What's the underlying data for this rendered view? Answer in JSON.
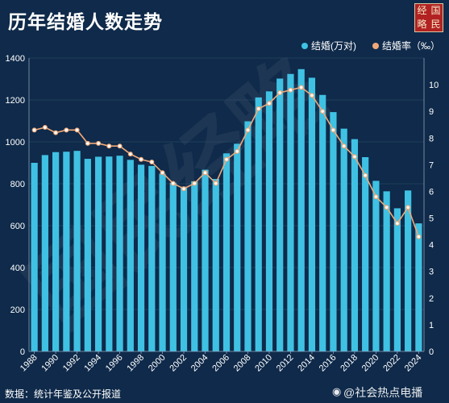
{
  "header": {
    "title": "历年结婚人数走势",
    "logo_chars": [
      "经",
      "国",
      "略",
      "民"
    ]
  },
  "legend": {
    "bar_label": "结婚(万对)",
    "line_label": "结婚率（‰）"
  },
  "footer": {
    "source": "数据：统计年鉴及公开报道",
    "watermark": "@社会热点电播"
  },
  "background_watermark": "国民经略",
  "colors": {
    "background": "#0f2a4a",
    "bar": "#3fc1e3",
    "line": "#f0a878",
    "point_fill": "#ffffff",
    "axis_text": "#ffffff",
    "grid": "#34506f"
  },
  "chart_data": {
    "type": "bar",
    "title": "历年结婚人数走势",
    "categories": [
      1988,
      1989,
      1990,
      1991,
      1992,
      1993,
      1994,
      1995,
      1996,
      1997,
      1998,
      1999,
      2000,
      2001,
      2002,
      2003,
      2004,
      2005,
      2006,
      2007,
      2008,
      2009,
      2010,
      2011,
      2012,
      2013,
      2014,
      2015,
      2016,
      2017,
      2018,
      2019,
      2020,
      2021,
      2022,
      2023,
      2024
    ],
    "x_tick_labels": [
      "1988",
      "1990",
      "1992",
      "1994",
      "1996",
      "1998",
      "2000",
      "2002",
      "2004",
      "2006",
      "2008",
      "2010",
      "2012",
      "2014",
      "2016",
      "2018",
      "2020",
      "2022",
      "2024"
    ],
    "series": [
      {
        "name": "结婚(万对)",
        "type": "bar",
        "axis": "left",
        "values": [
          900,
          937,
          951,
          953,
          957,
          919,
          929,
          930,
          934,
          914,
          891,
          885,
          848,
          805,
          786,
          812,
          867,
          823,
          945,
          991,
          1098,
          1212,
          1241,
          1302,
          1324,
          1347,
          1306,
          1224,
          1142,
          1063,
          1013,
          927,
          814,
          764,
          683,
          768,
          611
        ]
      },
      {
        "name": "结婚率（‰）",
        "type": "line",
        "axis": "right",
        "values": [
          8.3,
          8.4,
          8.2,
          8.3,
          8.3,
          7.8,
          7.8,
          7.7,
          7.7,
          7.4,
          7.2,
          7.1,
          6.7,
          6.3,
          6.1,
          6.3,
          6.7,
          6.3,
          7.2,
          7.5,
          8.3,
          9.1,
          9.3,
          9.7,
          9.8,
          9.9,
          9.6,
          9.0,
          8.3,
          7.7,
          7.3,
          6.6,
          5.8,
          5.4,
          4.8,
          5.4,
          4.3
        ]
      }
    ],
    "y_left": {
      "ylim": [
        0,
        1400
      ],
      "ticks": [
        "0",
        "200",
        "400",
        "600",
        "800",
        "1000",
        "1200",
        "1400"
      ]
    },
    "y_right": {
      "ylim": [
        0,
        11
      ],
      "ticks": [
        "0",
        "1",
        "2",
        "3",
        "4",
        "5",
        "6",
        "7",
        "8",
        "9",
        "10"
      ]
    },
    "grid": true,
    "legend_position": "top-right"
  }
}
